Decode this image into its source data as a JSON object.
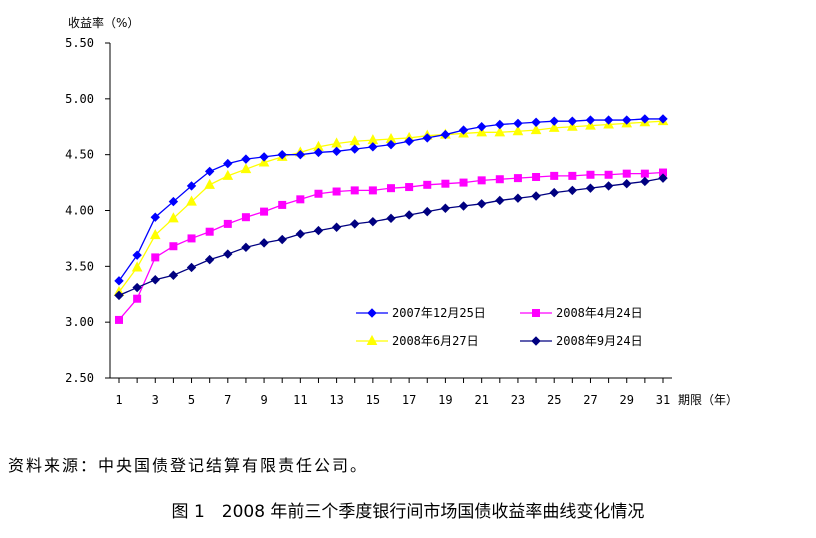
{
  "chart_data": {
    "type": "line",
    "ylabel": "收益率（%）",
    "xlabel": "期限（年）",
    "ylim": [
      2.5,
      5.5
    ],
    "yticks": [
      "2.50",
      "3.00",
      "3.50",
      "4.00",
      "4.50",
      "5.00",
      "5.50"
    ],
    "x": [
      1,
      2,
      3,
      4,
      5,
      6,
      7,
      8,
      9,
      10,
      11,
      12,
      13,
      14,
      15,
      16,
      17,
      18,
      19,
      20,
      21,
      22,
      23,
      24,
      25,
      26,
      27,
      28,
      29,
      30,
      31
    ],
    "xticks": [
      "1",
      "3",
      "5",
      "7",
      "9",
      "11",
      "13",
      "15",
      "17",
      "19",
      "21",
      "23",
      "25",
      "27",
      "29",
      "31"
    ],
    "grid": false,
    "legend_position": "bottom-right",
    "series": [
      {
        "name": "2007年12月25日",
        "color": "#0000FF",
        "marker": "diamond",
        "values": [
          3.37,
          3.6,
          3.94,
          4.08,
          4.22,
          4.35,
          4.42,
          4.46,
          4.48,
          4.5,
          4.5,
          4.52,
          4.53,
          4.55,
          4.57,
          4.59,
          4.62,
          4.65,
          4.68,
          4.72,
          4.75,
          4.77,
          4.78,
          4.79,
          4.8,
          4.8,
          4.81,
          4.81,
          4.81,
          4.82,
          4.82
        ]
      },
      {
        "name": "2008年4月24日",
        "color": "#FF00FF",
        "marker": "square",
        "values": [
          3.02,
          3.21,
          3.58,
          3.68,
          3.75,
          3.81,
          3.88,
          3.94,
          3.99,
          4.05,
          4.1,
          4.15,
          4.17,
          4.18,
          4.18,
          4.2,
          4.21,
          4.23,
          4.24,
          4.25,
          4.27,
          4.28,
          4.29,
          4.3,
          4.31,
          4.31,
          4.32,
          4.32,
          4.33,
          4.33,
          4.34
        ]
      },
      {
        "name": "2008年6月27日",
        "color": "#FFFF00",
        "marker": "triangle",
        "values": [
          3.27,
          3.49,
          3.78,
          3.93,
          4.08,
          4.23,
          4.31,
          4.37,
          4.43,
          4.48,
          4.52,
          4.57,
          4.6,
          4.62,
          4.63,
          4.64,
          4.65,
          4.67,
          4.68,
          4.69,
          4.7,
          4.7,
          4.71,
          4.72,
          4.74,
          4.75,
          4.76,
          4.77,
          4.78,
          4.79,
          4.8
        ]
      },
      {
        "name": "2008年9月24日",
        "color": "#000080",
        "marker": "diamond",
        "values": [
          3.24,
          3.31,
          3.38,
          3.42,
          3.49,
          3.56,
          3.61,
          3.67,
          3.71,
          3.74,
          3.79,
          3.82,
          3.85,
          3.88,
          3.9,
          3.93,
          3.96,
          3.99,
          4.02,
          4.04,
          4.06,
          4.09,
          4.11,
          4.13,
          4.16,
          4.18,
          4.2,
          4.22,
          4.24,
          4.26,
          4.29
        ]
      }
    ]
  },
  "source_text": "资料来源：中央国债登记结算有限责任公司。",
  "caption": "图 1　2008 年前三个季度银行间市场国债收益率曲线变化情况"
}
